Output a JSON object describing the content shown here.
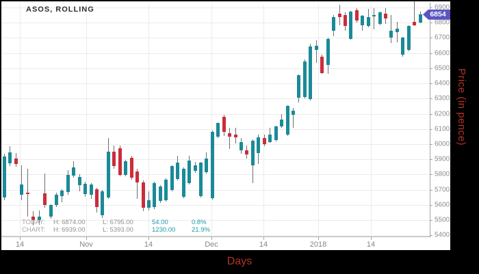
{
  "title": "ASOS, ROLLING",
  "badge": {
    "value": "6854"
  },
  "info": {
    "rows": [
      {
        "label": "TODAY:",
        "high": "H: 6874.00",
        "low": "L: 6795.00",
        "change": "54.00",
        "pct": "0.8%"
      },
      {
        "label": "CHART:",
        "high": "H: 6939.00",
        "low": "L: 5393.00",
        "change": "1230.00",
        "pct": "21.9%"
      }
    ]
  },
  "axes": {
    "x_title": "Days",
    "y_title": "Price (in pence)",
    "y_ticks": [
      6900,
      6800,
      6700,
      6600,
      6500,
      6400,
      6300,
      6200,
      6100,
      6000,
      5900,
      5800,
      5700,
      5600,
      5500,
      5400
    ],
    "x_ticks": [
      {
        "label": "14",
        "x": 27
      },
      {
        "label": "Nov",
        "x": 124
      },
      {
        "label": "14",
        "x": 215
      },
      {
        "label": "Dec",
        "x": 307
      },
      {
        "label": "14",
        "x": 383
      },
      {
        "label": "2018",
        "x": 463
      },
      {
        "label": "14",
        "x": 540
      }
    ]
  },
  "colors": {
    "up": "#1a8a98",
    "down": "#cc2c3a",
    "badge": "#5b55c0",
    "grid": "#ebebeb",
    "axis": "#a3a3a3",
    "axis_title": "#b43228",
    "info_change": "#1a9aa8",
    "frame": "#000000"
  },
  "chart_data": {
    "type": "candlestick",
    "title": "ASOS, ROLLING",
    "xlabel": "Days",
    "ylabel": "Price (in pence)",
    "ylim": [
      5400,
      6950
    ],
    "grid": true,
    "x_tick_labels": [
      "14",
      "Nov",
      "14",
      "Dec",
      "14",
      "2018",
      "14"
    ],
    "last_price": 6854,
    "today": {
      "high": 6874,
      "low": 6795,
      "change": 54,
      "change_pct": 0.8
    },
    "chart_range": {
      "high": 6939,
      "low": 5393,
      "change": 1230,
      "change_pct": 21.9
    },
    "ohlc_note": "candles as [open, high, low, close], left to right",
    "candles": [
      [
        5650,
        5935,
        5630,
        5920
      ],
      [
        5875,
        5985,
        5855,
        5945
      ],
      [
        5905,
        5940,
        5850,
        5868
      ],
      [
        5666,
        5862,
        5630,
        5733
      ],
      [
        5680,
        5837,
        5525,
        5672
      ],
      [
        5522,
        5560,
        5465,
        5500
      ],
      [
        5500,
        5565,
        5470,
        5522
      ],
      [
        5675,
        5808,
        5580,
        5600
      ],
      [
        5522,
        5605,
        5508,
        5598
      ],
      [
        5598,
        5680,
        5588,
        5666
      ],
      [
        5657,
        5705,
        5618,
        5693
      ],
      [
        5684,
        5828,
        5668,
        5796
      ],
      [
        5792,
        5887,
        5778,
        5846
      ],
      [
        5729,
        5800,
        5688,
        5783
      ],
      [
        5670,
        5752,
        5652,
        5738
      ],
      [
        5666,
        5742,
        5638,
        5733
      ],
      [
        5702,
        5712,
        5548,
        5584
      ],
      [
        5530,
        5700,
        5512,
        5690
      ],
      [
        5650,
        6040,
        5638,
        5950
      ],
      [
        5950,
        5992,
        5838,
        5855
      ],
      [
        5973,
        5992,
        5788,
        5797
      ],
      [
        5797,
        5895,
        5788,
        5887
      ],
      [
        5910,
        5922,
        5768,
        5779
      ],
      [
        5820,
        5836,
        5638,
        5748
      ],
      [
        5748,
        5762,
        5558,
        5582
      ],
      [
        5582,
        5688,
        5562,
        5630
      ],
      [
        5585,
        5752,
        5572,
        5743
      ],
      [
        5626,
        5732,
        5612,
        5721
      ],
      [
        5630,
        5776,
        5622,
        5767
      ],
      [
        5700,
        5862,
        5688,
        5855
      ],
      [
        5770,
        5922,
        5760,
        5877
      ],
      [
        5652,
        5845,
        5645,
        5837
      ],
      [
        5742,
        5923,
        5735,
        5891
      ],
      [
        5823,
        5882,
        5812,
        5859
      ],
      [
        5657,
        5885,
        5650,
        5878
      ],
      [
        5815,
        5945,
        5808,
        5905
      ],
      [
        5644,
        6090,
        5636,
        6080
      ],
      [
        6048,
        6145,
        6040,
        6138
      ],
      [
        6180,
        6195,
        6055,
        6080
      ],
      [
        6071,
        6108,
        5968,
        6048
      ],
      [
        6065,
        6108,
        6004,
        6043
      ],
      [
        5959,
        6040,
        5936,
        6013
      ],
      [
        5959,
        5992,
        5905,
        5932
      ],
      [
        5860,
        6032,
        5745,
        6022
      ],
      [
        5940,
        6062,
        5868,
        6045
      ],
      [
        6040,
        6062,
        5985,
        6000
      ],
      [
        6013,
        6107,
        6008,
        6062
      ],
      [
        6026,
        6120,
        6018,
        6116
      ],
      [
        6116,
        6197,
        6110,
        6161
      ],
      [
        6062,
        6255,
        6055,
        6251
      ],
      [
        6193,
        6240,
        6107,
        6220
      ],
      [
        6305,
        6460,
        6274,
        6454
      ],
      [
        6310,
        6560,
        6300,
        6545
      ],
      [
        6296,
        6660,
        6290,
        6643
      ],
      [
        6621,
        6684,
        6535,
        6648
      ],
      [
        6576,
        6590,
        6462,
        6468
      ],
      [
        6520,
        6700,
        6462,
        6693
      ],
      [
        6747,
        6851,
        6711,
        6837
      ],
      [
        6860,
        6920,
        6783,
        6837
      ],
      [
        6851,
        6868,
        6747,
        6779
      ],
      [
        6693,
        6878,
        6688,
        6874
      ],
      [
        6882,
        6895,
        6802,
        6815
      ],
      [
        6783,
        6852,
        6747,
        6846
      ],
      [
        6779,
        6891,
        6770,
        6837
      ],
      [
        6840,
        6896,
        6756,
        6851
      ],
      [
        6792,
        6872,
        6785,
        6868
      ],
      [
        6858,
        6896,
        6792,
        6826
      ],
      [
        6702,
        6851,
        6665,
        6747
      ],
      [
        6738,
        6806,
        6670,
        6760
      ],
      [
        6590,
        6705,
        6576,
        6700
      ],
      [
        6621,
        6782,
        6611,
        6779
      ],
      [
        6806,
        6939,
        6780,
        6784
      ],
      [
        6800,
        6874,
        6795,
        6854
      ]
    ]
  }
}
